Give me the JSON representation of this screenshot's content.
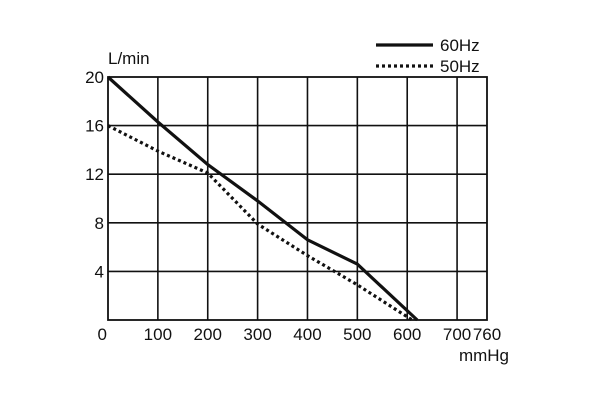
{
  "chart_data": {
    "type": "line",
    "ylabel": "L/min",
    "xlabel": "mmHg",
    "xlim": [
      0,
      760
    ],
    "ylim": [
      0,
      20
    ],
    "x_ticks": [
      0,
      100,
      200,
      300,
      400,
      500,
      600,
      700,
      760
    ],
    "x_tick_labels": [
      "0",
      "100",
      "200",
      "300",
      "400",
      "500",
      "600",
      "700",
      "760"
    ],
    "y_ticks": [
      4,
      8,
      12,
      16,
      20
    ],
    "y_tick_labels": [
      "4",
      "8",
      "12",
      "16",
      "20"
    ],
    "grid": true,
    "legend_position": "top-right",
    "series": [
      {
        "name": "60Hz",
        "style": "solid",
        "color": "#111111",
        "points": [
          [
            0,
            20
          ],
          [
            100,
            16.3
          ],
          [
            200,
            12.8
          ],
          [
            300,
            9.8
          ],
          [
            400,
            6.6
          ],
          [
            500,
            4.6
          ],
          [
            620,
            0
          ]
        ]
      },
      {
        "name": "50Hz",
        "style": "dotted",
        "color": "#111111",
        "points": [
          [
            0,
            16
          ],
          [
            100,
            13.9
          ],
          [
            200,
            12.1
          ],
          [
            300,
            7.9
          ],
          [
            400,
            5.3
          ],
          [
            500,
            2.9
          ],
          [
            610,
            0
          ]
        ]
      }
    ]
  }
}
